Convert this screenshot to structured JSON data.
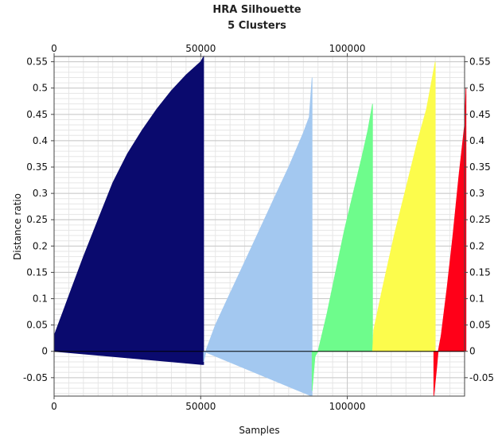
{
  "chart_data": {
    "type": "area",
    "title": "HRA Silhouette",
    "subtitle": "5 Clusters",
    "xlabel": "Samples",
    "ylabel": "Distance ratio",
    "xlim": [
      0,
      140000
    ],
    "ylim": [
      -0.085,
      0.56
    ],
    "x_ticks": [
      "0",
      "50000",
      "100000"
    ],
    "x_tick_values": [
      0,
      50000,
      100000
    ],
    "y_ticks": [
      "0.55",
      "0.5",
      "0.45",
      "0.4",
      "0.35",
      "0.3",
      "0.25",
      "0.2",
      "0.15",
      "0.1",
      "0.05",
      "0",
      "-0.05"
    ],
    "y_tick_values": [
      0.55,
      0.5,
      0.45,
      0.4,
      0.35,
      0.3,
      0.25,
      0.2,
      0.15,
      0.1,
      0.05,
      0,
      -0.05
    ],
    "grid": true,
    "series": [
      {
        "color": "#0a0a6e",
        "points": [
          [
            0,
            0.03
          ],
          [
            1000,
            0.045
          ],
          [
            3000,
            0.075
          ],
          [
            6000,
            0.12
          ],
          [
            10000,
            0.18
          ],
          [
            15000,
            0.25
          ],
          [
            20000,
            0.32
          ],
          [
            25000,
            0.375
          ],
          [
            30000,
            0.42
          ],
          [
            35000,
            0.46
          ],
          [
            40000,
            0.495
          ],
          [
            45000,
            0.525
          ],
          [
            50000,
            0.55
          ],
          [
            51000,
            0.56
          ],
          [
            51000,
            -0.025
          ],
          [
            50500,
            -0.025
          ]
        ]
      },
      {
        "color": "#a3c8f0",
        "points": [
          [
            51000,
            -0.02
          ],
          [
            52000,
            0.005
          ],
          [
            55000,
            0.05
          ],
          [
            60000,
            0.11
          ],
          [
            65000,
            0.17
          ],
          [
            70000,
            0.23
          ],
          [
            75000,
            0.29
          ],
          [
            80000,
            0.35
          ],
          [
            85000,
            0.415
          ],
          [
            87000,
            0.445
          ],
          [
            88000,
            0.52
          ],
          [
            88000,
            -0.085
          ],
          [
            87800,
            -0.085
          ]
        ]
      },
      {
        "color": "#6efc8c",
        "points": [
          [
            88000,
            -0.075
          ],
          [
            89000,
            -0.01
          ],
          [
            90000,
            0.0
          ],
          [
            93000,
            0.07
          ],
          [
            96000,
            0.15
          ],
          [
            99000,
            0.23
          ],
          [
            102000,
            0.3
          ],
          [
            105000,
            0.37
          ],
          [
            107000,
            0.42
          ],
          [
            108600,
            0.47
          ],
          [
            108600,
            0.0
          ]
        ]
      },
      {
        "color": "#fcfc4c",
        "points": [
          [
            108600,
            0.0
          ],
          [
            109000,
            0.04
          ],
          [
            112000,
            0.12
          ],
          [
            116000,
            0.22
          ],
          [
            120000,
            0.31
          ],
          [
            124000,
            0.4
          ],
          [
            127000,
            0.46
          ],
          [
            130000,
            0.55
          ],
          [
            130000,
            0.0
          ]
        ]
      },
      {
        "color": "#ff0018",
        "points": [
          [
            129500,
            -0.085
          ],
          [
            130500,
            -0.03
          ],
          [
            131000,
            0.0
          ],
          [
            132000,
            0.03
          ],
          [
            134000,
            0.12
          ],
          [
            136000,
            0.22
          ],
          [
            138000,
            0.33
          ],
          [
            140000,
            0.43
          ],
          [
            140500,
            0.5
          ],
          [
            140500,
            0.0
          ]
        ]
      }
    ]
  }
}
